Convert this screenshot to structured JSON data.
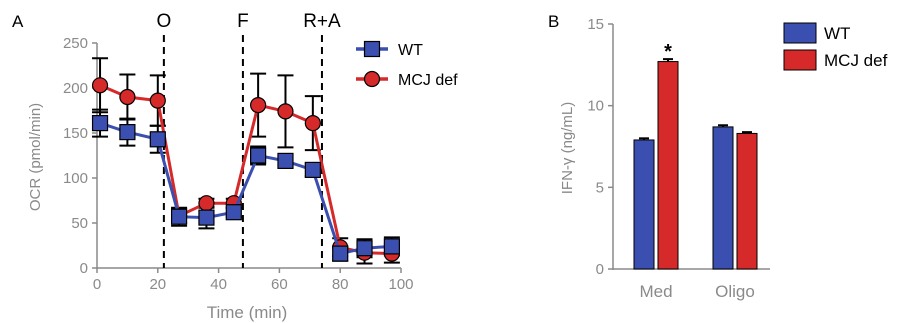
{
  "chart_data": [
    {
      "panel_label": "A",
      "type": "line",
      "xlabel": "Time (min)",
      "ylabel": "OCR (pmol/min)",
      "xlim": [
        0,
        100
      ],
      "ylim": [
        0,
        250
      ],
      "xticks": [
        0,
        20,
        40,
        60,
        80,
        100
      ],
      "yticks": [
        0,
        50,
        100,
        150,
        200,
        250
      ],
      "legend_position": "top-right",
      "injections": [
        {
          "label": "O",
          "x": 22
        },
        {
          "label": "F",
          "x": 48
        },
        {
          "label": "R+A",
          "x": 74
        }
      ],
      "x": [
        1,
        10,
        20,
        27,
        36,
        45,
        53,
        62,
        71,
        80,
        88,
        97
      ],
      "series": [
        {
          "name": "WT",
          "color": "#3a4fb0",
          "marker": "square",
          "values": [
            161,
            151,
            143,
            57,
            56,
            62,
            125,
            119,
            109,
            16,
            22,
            24
          ],
          "errors": [
            15,
            15,
            15,
            10,
            12,
            5,
            10,
            5,
            7,
            8,
            10,
            10
          ]
        },
        {
          "name": "MCJ def",
          "color": "#d62a2a",
          "marker": "circle",
          "values": [
            203,
            190,
            186,
            58,
            72,
            72,
            181,
            174,
            161,
            23,
            17,
            16
          ],
          "errors": [
            30,
            25,
            28,
            8,
            5,
            5,
            35,
            40,
            30,
            10,
            12,
            10
          ]
        }
      ]
    },
    {
      "panel_label": "B",
      "type": "bar",
      "categories": [
        "Med",
        "Oligo"
      ],
      "ylabel": "IFN-γ (ng/mL)",
      "ylim": [
        0,
        15
      ],
      "yticks": [
        0,
        5,
        10,
        15
      ],
      "legend_position": "top-right",
      "series": [
        {
          "name": "WT",
          "color": "#3a4fb0",
          "values": [
            7.9,
            8.7
          ],
          "errors": [
            0.1,
            0.1
          ]
        },
        {
          "name": "MCJ def",
          "color": "#d62a2a",
          "values": [
            12.7,
            8.3
          ],
          "errors": [
            0.15,
            0.08
          ]
        }
      ],
      "annotations": [
        {
          "text": "*",
          "category": "Med",
          "series": "MCJ def"
        }
      ]
    }
  ]
}
